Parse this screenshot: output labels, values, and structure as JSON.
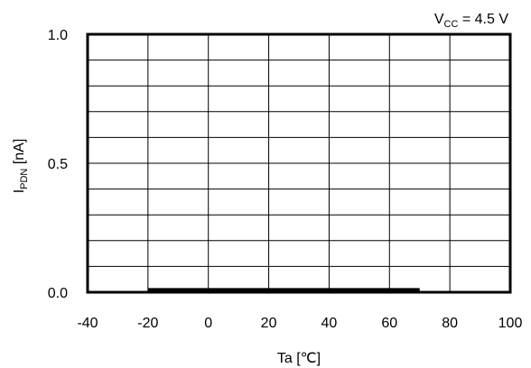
{
  "chart_data": {
    "type": "line",
    "title": "",
    "xlabel": "Ta [℃]",
    "ylabel_main": "I",
    "ylabel_sub": "PDN",
    "ylabel_suffix": " [nA]",
    "xlim": [
      -40,
      100
    ],
    "ylim": [
      0.0,
      1.0
    ],
    "x_ticks": [
      -40,
      -20,
      0,
      20,
      40,
      60,
      80,
      100
    ],
    "y_ticks": [
      0.0,
      0.5,
      1.0
    ],
    "y_tick_labels": [
      "0.0",
      "0.5",
      "1.0"
    ],
    "x_grid_step": 20,
    "y_grid_step": 0.1,
    "grid": true,
    "annotation": {
      "main": "V",
      "sub": "CC",
      "suffix": " = 4.5 V",
      "placement": "top-right"
    },
    "series": [
      {
        "x": [
          -20,
          0,
          20,
          40,
          60,
          70
        ],
        "y": [
          0.01,
          0.01,
          0.01,
          0.01,
          0.01,
          0.01
        ],
        "color": "#000000"
      }
    ]
  }
}
